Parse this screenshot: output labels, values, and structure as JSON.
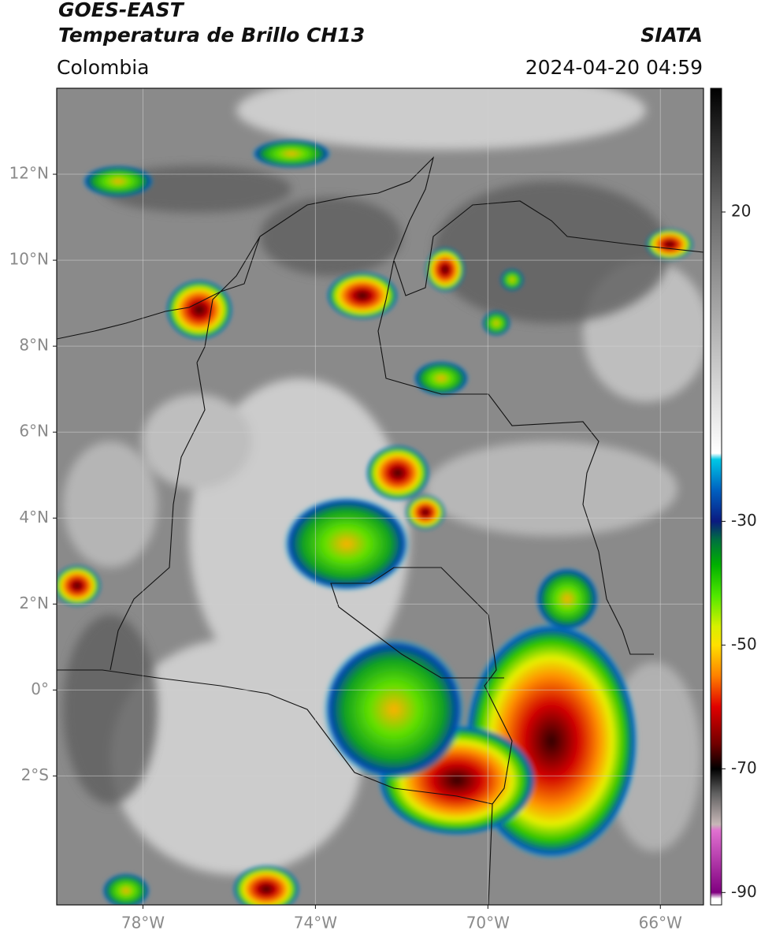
{
  "header": {
    "title": "GOES-EAST",
    "subtitle": "Temperatura de Brillo CH13",
    "region": "Colombia",
    "source": "SIATA",
    "datetime": "2024-04-20 04:59"
  },
  "map": {
    "xlim": [
      -80,
      -65
    ],
    "ylim": [
      -5,
      14
    ],
    "grid": true,
    "xticks": [
      {
        "value": -78,
        "label": "78°W"
      },
      {
        "value": -74,
        "label": "74°W"
      },
      {
        "value": -70,
        "label": "70°W"
      },
      {
        "value": -66,
        "label": "66°W"
      }
    ],
    "yticks": [
      {
        "value": 12,
        "label": "12°N"
      },
      {
        "value": 10,
        "label": "10°N"
      },
      {
        "value": 8,
        "label": "8°N"
      },
      {
        "value": 6,
        "label": "6°N"
      },
      {
        "value": 4,
        "label": "4°N"
      },
      {
        "value": 2,
        "label": "2°N"
      },
      {
        "value": 0,
        "label": "0°"
      },
      {
        "value": -2,
        "label": "2°S"
      }
    ]
  },
  "colorbar": {
    "lim": [
      -92,
      40
    ],
    "ticks": [
      20,
      -30,
      -50,
      -70,
      -90
    ],
    "colormap": [
      {
        "value": 40,
        "color": "#000000"
      },
      {
        "value": 20,
        "color": "#6a6a6a"
      },
      {
        "value": -19,
        "color": "#ffffff"
      },
      {
        "value": -20,
        "color": "#00c8e6"
      },
      {
        "value": -25,
        "color": "#0060c0"
      },
      {
        "value": -30,
        "color": "#0a1a80"
      },
      {
        "value": -33,
        "color": "#007040"
      },
      {
        "value": -37,
        "color": "#00b000"
      },
      {
        "value": -42,
        "color": "#50e800"
      },
      {
        "value": -47,
        "color": "#d8f000"
      },
      {
        "value": -50,
        "color": "#ffe000"
      },
      {
        "value": -55,
        "color": "#ff8000"
      },
      {
        "value": -60,
        "color": "#e00000"
      },
      {
        "value": -66,
        "color": "#700000"
      },
      {
        "value": -70,
        "color": "#000000"
      },
      {
        "value": -74,
        "color": "#606060"
      },
      {
        "value": -79,
        "color": "#c8b8b8"
      },
      {
        "value": -80,
        "color": "#e070d0"
      },
      {
        "value": -90,
        "color": "#800080"
      },
      {
        "value": -91,
        "color": "#ffffff"
      }
    ]
  }
}
